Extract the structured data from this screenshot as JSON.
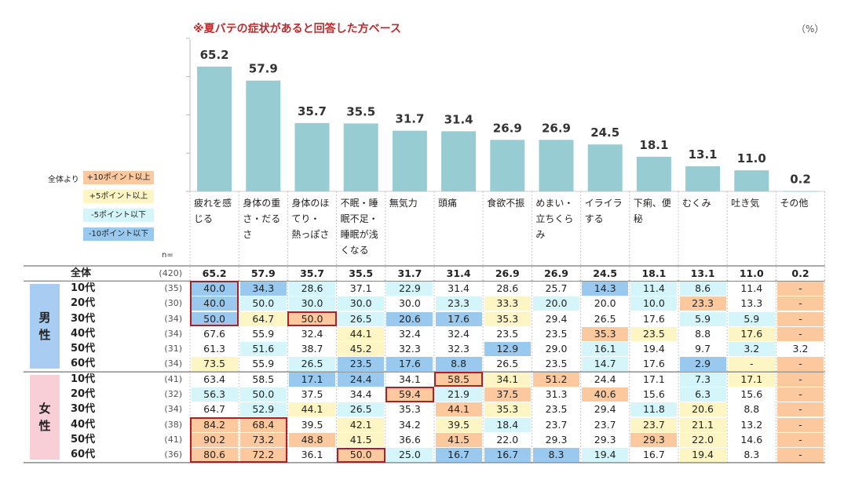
{
  "note": "※夏バテの症状があると回答した方ベース",
  "unit": "（%）",
  "legend": {
    "caption": "全体より",
    "items": [
      {
        "label": "+10ポイント以上",
        "color": "#fcc99f"
      },
      {
        "label": "+5ポイント以上",
        "color": "#fdf6c4"
      },
      {
        "label": "-5ポイント以下",
        "color": "#d4f6fb"
      },
      {
        "label": "-10ポイント以下",
        "color": "#9ac9ef"
      }
    ]
  },
  "n_label": "n=",
  "bar_color": "#96ccd2",
  "chart_data": {
    "type": "bar",
    "categories": [
      "疲れを感じる",
      "身体の重さ・だるさ",
      "身体のほてり・熱っぽさ",
      "不眠・睡眠不足・睡眠が浅くなる",
      "無気力",
      "頭痛",
      "食欲不振",
      "めまい・立ちくらみ",
      "イライラする",
      "下痢、便秘",
      "むくみ",
      "吐き気",
      "その他"
    ],
    "values": [
      65.2,
      57.9,
      35.7,
      35.5,
      31.7,
      31.4,
      26.9,
      26.9,
      24.5,
      18.1,
      13.1,
      11.0,
      0.2
    ],
    "value_labels": [
      "65.2",
      "57.9",
      "35.7",
      "35.5",
      "31.7",
      "31.4",
      "26.9",
      "26.9",
      "24.5",
      "18.1",
      "13.1",
      "11.0",
      "0.2"
    ],
    "ylim": [
      0,
      80
    ]
  },
  "header_lines": [
    [
      "疲れを感",
      "じる"
    ],
    [
      "身体の重",
      "さ・だる",
      "さ"
    ],
    [
      "身体のほ",
      "てり・",
      "熱っぽさ"
    ],
    [
      "不眠・睡",
      "眠不足・",
      "睡眠が浅",
      "くなる"
    ],
    [
      "無気力"
    ],
    [
      "頭痛"
    ],
    [
      "食欲不振"
    ],
    [
      "めまい・",
      "立ちくら",
      "み"
    ],
    [
      "イライラ",
      "する"
    ],
    [
      "下痢、便",
      "秘"
    ],
    [
      "むくみ"
    ],
    [
      "吐き気"
    ],
    [
      "その他"
    ]
  ],
  "groups": [
    {
      "label": "男\n性",
      "color": "#a9cdf2"
    },
    {
      "label": "女\n性",
      "color": "#f8cfd6"
    }
  ],
  "rows": [
    {
      "label": "全体",
      "n": "(420)",
      "values": [
        "65.2",
        "57.9",
        "35.7",
        "35.5",
        "31.7",
        "31.4",
        "26.9",
        "26.9",
        "24.5",
        "18.1",
        "13.1",
        "11.0",
        "0.2"
      ],
      "levels": [
        0,
        0,
        0,
        0,
        0,
        0,
        0,
        0,
        0,
        0,
        0,
        0,
        0
      ]
    },
    {
      "label": "10代",
      "n": "(35)",
      "values": [
        "40.0",
        "34.3",
        "28.6",
        "37.1",
        "22.9",
        "31.4",
        "28.6",
        "25.7",
        "14.3",
        "11.4",
        "8.6",
        "11.4",
        "-"
      ],
      "levels": [
        -2,
        -2,
        -1,
        0,
        -1,
        0,
        0,
        0,
        -2,
        -1,
        -1,
        0,
        2
      ]
    },
    {
      "label": "20代",
      "n": "(30)",
      "values": [
        "40.0",
        "50.0",
        "30.0",
        "30.0",
        "30.0",
        "23.3",
        "33.3",
        "20.0",
        "20.0",
        "10.0",
        "23.3",
        "13.3",
        "-"
      ],
      "levels": [
        -2,
        -1,
        -1,
        -1,
        0,
        -1,
        1,
        -1,
        0,
        -1,
        2,
        0,
        2
      ]
    },
    {
      "label": "30代",
      "n": "(34)",
      "values": [
        "50.0",
        "64.7",
        "50.0",
        "26.5",
        "20.6",
        "17.6",
        "35.3",
        "29.4",
        "26.5",
        "17.6",
        "5.9",
        "5.9",
        "-"
      ],
      "levels": [
        -2,
        1,
        2,
        -1,
        -2,
        -2,
        1,
        0,
        0,
        0,
        -1,
        -1,
        2
      ]
    },
    {
      "label": "40代",
      "n": "(34)",
      "values": [
        "67.6",
        "55.9",
        "32.4",
        "44.1",
        "32.4",
        "32.4",
        "23.5",
        "23.5",
        "35.3",
        "23.5",
        "8.8",
        "17.6",
        "-"
      ],
      "levels": [
        0,
        0,
        0,
        1,
        0,
        0,
        0,
        0,
        2,
        1,
        0,
        1,
        2
      ]
    },
    {
      "label": "50代",
      "n": "(31)",
      "values": [
        "61.3",
        "51.6",
        "38.7",
        "45.2",
        "32.3",
        "32.3",
        "12.9",
        "29.0",
        "16.1",
        "19.4",
        "9.7",
        "3.2",
        "3.2"
      ],
      "levels": [
        0,
        -1,
        0,
        1,
        0,
        0,
        -2,
        0,
        -1,
        0,
        0,
        -1,
        0
      ]
    },
    {
      "label": "60代",
      "n": "(34)",
      "values": [
        "73.5",
        "55.9",
        "26.5",
        "23.5",
        "17.6",
        "8.8",
        "26.5",
        "23.5",
        "14.7",
        "17.6",
        "2.9",
        "-",
        "-"
      ],
      "levels": [
        1,
        0,
        -1,
        -2,
        -2,
        -2,
        0,
        0,
        -1,
        0,
        -2,
        1,
        2
      ]
    },
    {
      "label": "10代",
      "n": "(41)",
      "values": [
        "63.4",
        "58.5",
        "17.1",
        "24.4",
        "34.1",
        "58.5",
        "34.1",
        "51.2",
        "24.4",
        "17.1",
        "7.3",
        "17.1",
        "-"
      ],
      "levels": [
        0,
        0,
        -2,
        -2,
        0,
        2,
        1,
        2,
        0,
        0,
        -1,
        1,
        2
      ]
    },
    {
      "label": "20代",
      "n": "(32)",
      "values": [
        "56.3",
        "50.0",
        "37.5",
        "34.4",
        "59.4",
        "21.9",
        "37.5",
        "31.3",
        "40.6",
        "15.6",
        "6.3",
        "15.6",
        "-"
      ],
      "levels": [
        -1,
        -1,
        0,
        0,
        2,
        -1,
        2,
        0,
        2,
        0,
        -1,
        0,
        2
      ]
    },
    {
      "label": "30代",
      "n": "(34)",
      "values": [
        "64.7",
        "52.9",
        "44.1",
        "26.5",
        "35.3",
        "44.1",
        "35.3",
        "23.5",
        "29.4",
        "11.8",
        "20.6",
        "8.8",
        "-"
      ],
      "levels": [
        0,
        -1,
        1,
        -1,
        0,
        2,
        1,
        0,
        0,
        -1,
        1,
        0,
        2
      ]
    },
    {
      "label": "40代",
      "n": "(38)",
      "values": [
        "84.2",
        "68.4",
        "39.5",
        "42.1",
        "34.2",
        "39.5",
        "18.4",
        "23.7",
        "23.7",
        "23.7",
        "21.1",
        "13.2",
        "-"
      ],
      "levels": [
        2,
        2,
        0,
        1,
        0,
        1,
        -1,
        0,
        0,
        1,
        1,
        0,
        2
      ]
    },
    {
      "label": "50代",
      "n": "(41)",
      "values": [
        "90.2",
        "73.2",
        "48.8",
        "41.5",
        "36.6",
        "41.5",
        "22.0",
        "29.3",
        "29.3",
        "29.3",
        "22.0",
        "14.6",
        "-"
      ],
      "levels": [
        2,
        2,
        2,
        1,
        0,
        2,
        0,
        0,
        0,
        2,
        1,
        0,
        2
      ]
    },
    {
      "label": "60代",
      "n": "(36)",
      "values": [
        "80.6",
        "72.2",
        "36.1",
        "50.0",
        "25.0",
        "16.7",
        "16.7",
        "8.3",
        "19.4",
        "16.7",
        "19.4",
        "8.3",
        "-"
      ],
      "levels": [
        2,
        2,
        0,
        2,
        -1,
        -2,
        -2,
        -2,
        -1,
        0,
        1,
        0,
        2
      ]
    }
  ]
}
